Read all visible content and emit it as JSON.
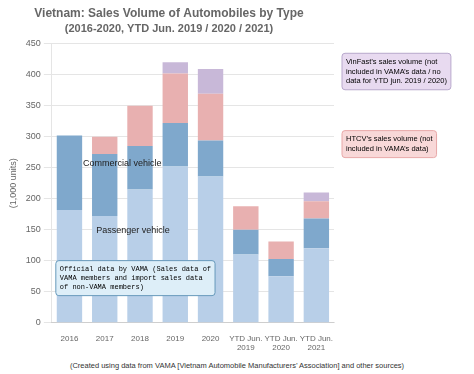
{
  "chart_data": {
    "type": "bar",
    "title": "Vietnam: Sales Volume of Automobiles by Type",
    "subtitle": "(2016-2020, YTD Jun. 2019 / 2020 / 2021)",
    "ylabel": "(1,000 units)",
    "footer": "(Created using data from VAMA [Vietnam Automobile Manufacturers’ Association] and other sources)",
    "annotations": [
      "Passenger vehicle",
      "Commercial vehicle",
      "Official data by VAMA (Sales data of\nVAMA members and import sales data\nof non-VAMA members)",
      "VinFast’s sales volume (not\nincluded in VAMA’s data / no\ndata for YTD jun. 2019 / 2020)",
      "HTCV’s sales volume (not\nincluded in VAMA’s data)"
    ],
    "categories": [
      "2016",
      "2017",
      "2018",
      "2019",
      "2020",
      "YTD Jun.\n2019",
      "YTD Jun.\n2020",
      "YTD Jun.\n2021"
    ],
    "series": [
      {
        "name": "Passenger vehicle",
        "color": "#b8cfe8",
        "values": [
          182,
          172,
          215,
          252,
          236,
          110,
          75,
          120
        ]
      },
      {
        "name": "Commercial vehicle",
        "color": "#7fa8cc",
        "values": [
          120,
          100,
          70,
          70,
          58,
          40,
          28,
          48
        ]
      },
      {
        "name": "HTCV",
        "color": "#e8b0b0",
        "values": [
          0,
          28,
          65,
          80,
          75,
          38,
          28,
          28
        ]
      },
      {
        "name": "VinFast",
        "color": "#c8b8d8",
        "values": [
          0,
          0,
          0,
          18,
          40,
          0,
          0,
          14
        ]
      }
    ],
    "stacked": true,
    "ylim": [
      0,
      450
    ],
    "yticks": [
      0,
      50,
      100,
      150,
      200,
      250,
      300,
      350,
      400,
      450
    ],
    "grid": true
  }
}
